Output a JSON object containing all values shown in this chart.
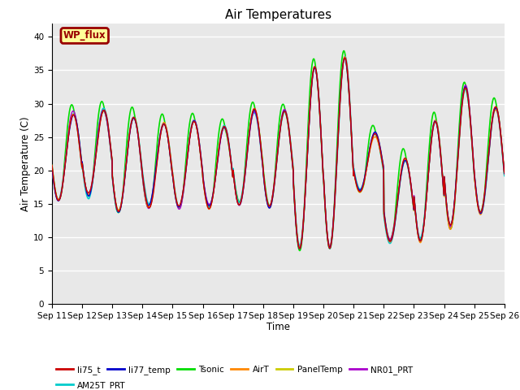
{
  "title": "Air Temperatures",
  "xlabel": "Time",
  "ylabel": "Air Temperature (C)",
  "ylim": [
    0,
    42
  ],
  "yticks": [
    0,
    5,
    10,
    15,
    20,
    25,
    30,
    35,
    40
  ],
  "date_labels": [
    "Sep 11",
    "Sep 12",
    "Sep 13",
    "Sep 14",
    "Sep 15",
    "Sep 16",
    "Sep 17",
    "Sep 18",
    "Sep 19",
    "Sep 20",
    "Sep 21",
    "Sep 22",
    "Sep 23",
    "Sep 24",
    "Sep 25",
    "Sep 26"
  ],
  "series": {
    "li75_t": {
      "color": "#cc0000",
      "lw": 1.0,
      "zorder": 5
    },
    "li77_temp": {
      "color": "#0000cc",
      "lw": 1.0,
      "zorder": 5
    },
    "Tsonic": {
      "color": "#00dd00",
      "lw": 1.2,
      "zorder": 3
    },
    "AirT": {
      "color": "#ff8800",
      "lw": 1.0,
      "zorder": 5
    },
    "PanelTemp": {
      "color": "#cccc00",
      "lw": 1.0,
      "zorder": 5
    },
    "NR01_PRT": {
      "color": "#aa00cc",
      "lw": 1.0,
      "zorder": 5
    },
    "AM25T_PRT": {
      "color": "#00cccc",
      "lw": 1.2,
      "zorder": 4
    }
  },
  "annotation": "WP_flux",
  "annotation_bg": "#ffff99",
  "annotation_border": "#990000",
  "bg_color": "#e8e8e8",
  "title_fontsize": 11,
  "tick_fontsize": 7.5,
  "label_fontsize": 8.5
}
